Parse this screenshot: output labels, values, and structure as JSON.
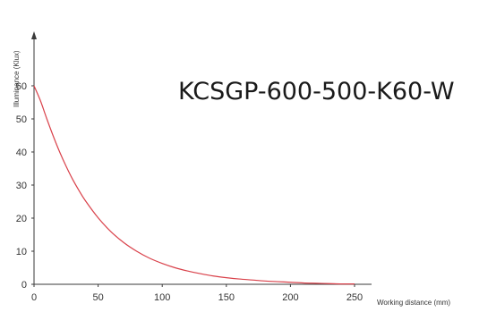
{
  "chart_data": {
    "type": "line",
    "title": "KCSGP-600-500-K60-W",
    "xlabel": "Working distance (mm)",
    "ylabel": "Illuminance (Klux)",
    "xlim": [
      0,
      250
    ],
    "ylim": [
      0,
      60
    ],
    "x_ticks": [
      0,
      50,
      100,
      150,
      200,
      250
    ],
    "y_ticks": [
      0,
      10,
      20,
      30,
      40,
      50,
      60
    ],
    "grid": false,
    "series": [
      {
        "color": "#d9414a",
        "x": [
          0,
          5,
          10,
          15,
          20,
          25,
          30,
          35,
          40,
          50,
          60,
          70,
          80,
          90,
          100,
          110,
          120,
          130,
          140,
          150,
          160,
          170,
          180,
          190,
          200,
          210,
          220,
          230,
          240,
          250
        ],
        "y": [
          60.0,
          55.5,
          50.0,
          44.8,
          40.0,
          35.7,
          31.8,
          28.4,
          25.3,
          20.1,
          15.9,
          12.6,
          10.0,
          7.9,
          6.3,
          5.0,
          4.0,
          3.2,
          2.5,
          2.0,
          1.6,
          1.3,
          1.0,
          0.8,
          0.6,
          0.4,
          0.3,
          0.2,
          0.1,
          0.1
        ]
      }
    ]
  }
}
